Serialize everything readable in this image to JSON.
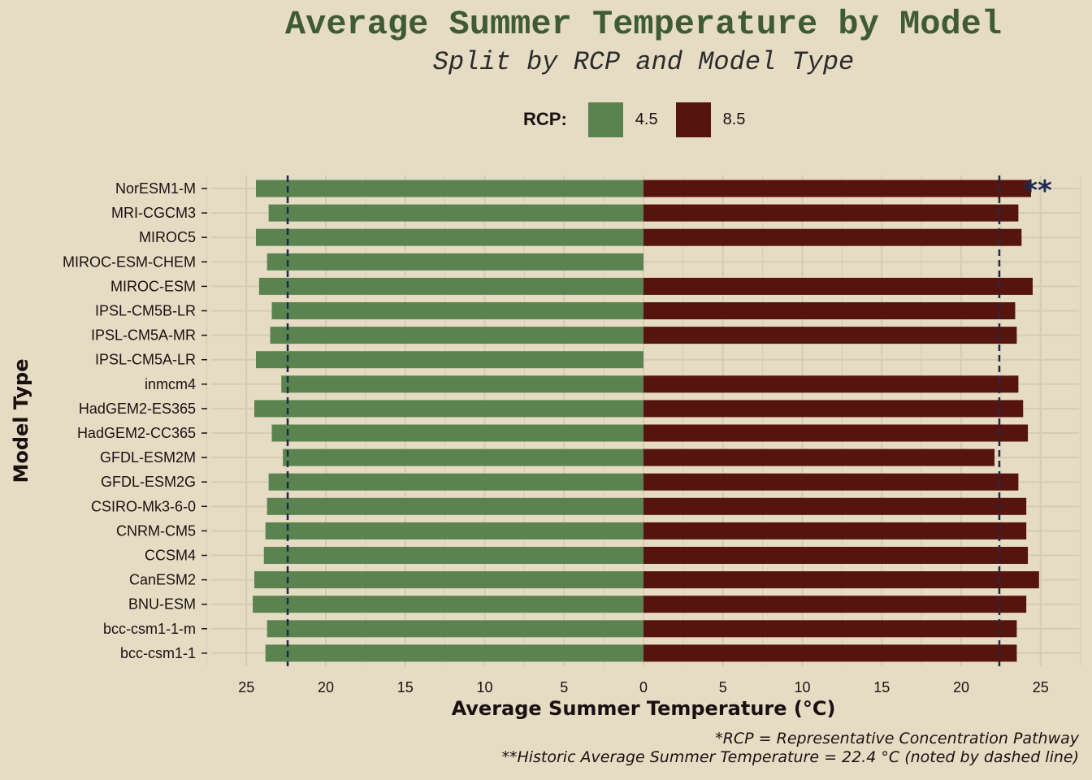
{
  "title": "Average Summer Temperature by Model",
  "subtitle": "Split by RCP and Model Type",
  "legend": {
    "title": "RCP:",
    "items": [
      {
        "label": "4.5",
        "color": "#5a834f"
      },
      {
        "label": "8.5",
        "color": "#56140f"
      }
    ]
  },
  "colors": {
    "background": "#e6dcc4",
    "grid": "#d6ccb4",
    "reference_line": "#1b2a55",
    "title": "#3e5a36"
  },
  "caption_lines": [
    "*RCP = Representative Concentration Pathway",
    "**Historic Average Summer Temperature = 22.4 °C (noted by dashed line)"
  ],
  "annotation": "**",
  "chart_data": {
    "type": "bar",
    "orientation": "horizontal-diverging",
    "xlabel": "Average Summer Temperature (°C)",
    "ylabel": "Model Type",
    "x_ticks": [
      "25",
      "20",
      "15",
      "10",
      "5",
      "0",
      "5",
      "10",
      "15",
      "20",
      "25"
    ],
    "xlim": [
      -27.5,
      27.5
    ],
    "reference_value": 22.4,
    "grid": true,
    "legend_position": "top",
    "categories": [
      "NorESM1-M",
      "MRI-CGCM3",
      "MIROC5",
      "MIROC-ESM-CHEM",
      "MIROC-ESM",
      "IPSL-CM5B-LR",
      "IPSL-CM5A-MR",
      "IPSL-CM5A-LR",
      "inmcm4",
      "HadGEM2-ES365",
      "HadGEM2-CC365",
      "GFDL-ESM2M",
      "GFDL-ESM2G",
      "CSIRO-Mk3-6-0",
      "CNRM-CM5",
      "CCSM4",
      "CanESM2",
      "BNU-ESM",
      "bcc-csm1-1-m",
      "bcc-csm1-1"
    ],
    "series": [
      {
        "name": "4.5",
        "side": "left",
        "values": [
          24.4,
          23.6,
          24.4,
          23.7,
          24.2,
          23.4,
          23.5,
          24.4,
          22.8,
          24.5,
          23.4,
          22.7,
          23.6,
          23.7,
          23.8,
          23.9,
          24.5,
          24.6,
          23.7,
          23.8
        ]
      },
      {
        "name": "8.5",
        "side": "right",
        "values": [
          24.4,
          23.6,
          23.8,
          null,
          24.5,
          23.4,
          23.5,
          null,
          23.6,
          23.9,
          24.2,
          22.1,
          23.6,
          24.1,
          24.1,
          24.2,
          24.9,
          24.1,
          23.5,
          23.5
        ]
      }
    ]
  }
}
